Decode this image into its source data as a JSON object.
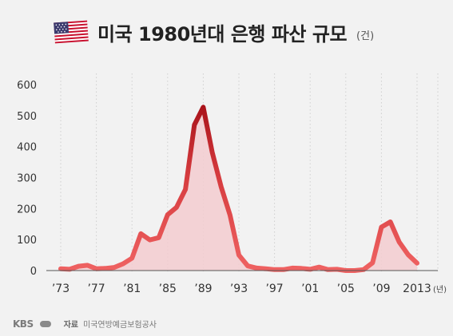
{
  "title": "미국 1980년대 은행 파산 규모",
  "unit": "(건)",
  "footer": {
    "logo": "KBS",
    "source_label": "자료",
    "source_text": "미국연방예금보험공사"
  },
  "colors": {
    "line": "#ec5a5a",
    "line_peak": "#a60f17",
    "area": "#f3cdd0",
    "grid": "#cfcfcf"
  },
  "chart_data": {
    "type": "line",
    "title": "미국 1980년대 은행 파산 규모",
    "xlabel": "",
    "ylabel": "",
    "unit_label": "(건)",
    "ylim": [
      0,
      600
    ],
    "yticks": [
      0,
      100,
      200,
      300,
      400,
      500,
      600
    ],
    "xtick_values": [
      1973,
      1977,
      1981,
      1985,
      1989,
      1993,
      1997,
      2001,
      2005,
      2009,
      2013
    ],
    "xtick_labels": [
      "’73",
      "’77",
      "’81",
      "’85",
      "’89",
      "’93",
      "’97",
      "’01",
      "’05",
      "’09",
      "2013"
    ],
    "x_unit_label": "(년)",
    "grid": "vertical dotted",
    "series": [
      {
        "x": [
          1973,
          1974,
          1975,
          1976,
          1977,
          1978,
          1979,
          1980,
          1981,
          1982,
          1983,
          1984,
          1985,
          1986,
          1987,
          1988,
          1989,
          1990,
          1991,
          1992,
          1993,
          1994,
          1995,
          1996,
          1997,
          1998,
          1999,
          2000,
          2001,
          2002,
          2003,
          2004,
          2005,
          2006,
          2007,
          2008,
          2009,
          2010,
          2011,
          2012,
          2013
        ],
        "values": [
          6,
          4,
          14,
          17,
          6,
          7,
          10,
          22,
          40,
          119,
          99,
          106,
          180,
          204,
          262,
          470,
          527,
          382,
          271,
          179,
          50,
          15,
          8,
          6,
          3,
          3,
          8,
          7,
          4,
          11,
          3,
          4,
          0,
          0,
          3,
          25,
          140,
          157,
          92,
          51,
          24
        ]
      }
    ]
  }
}
